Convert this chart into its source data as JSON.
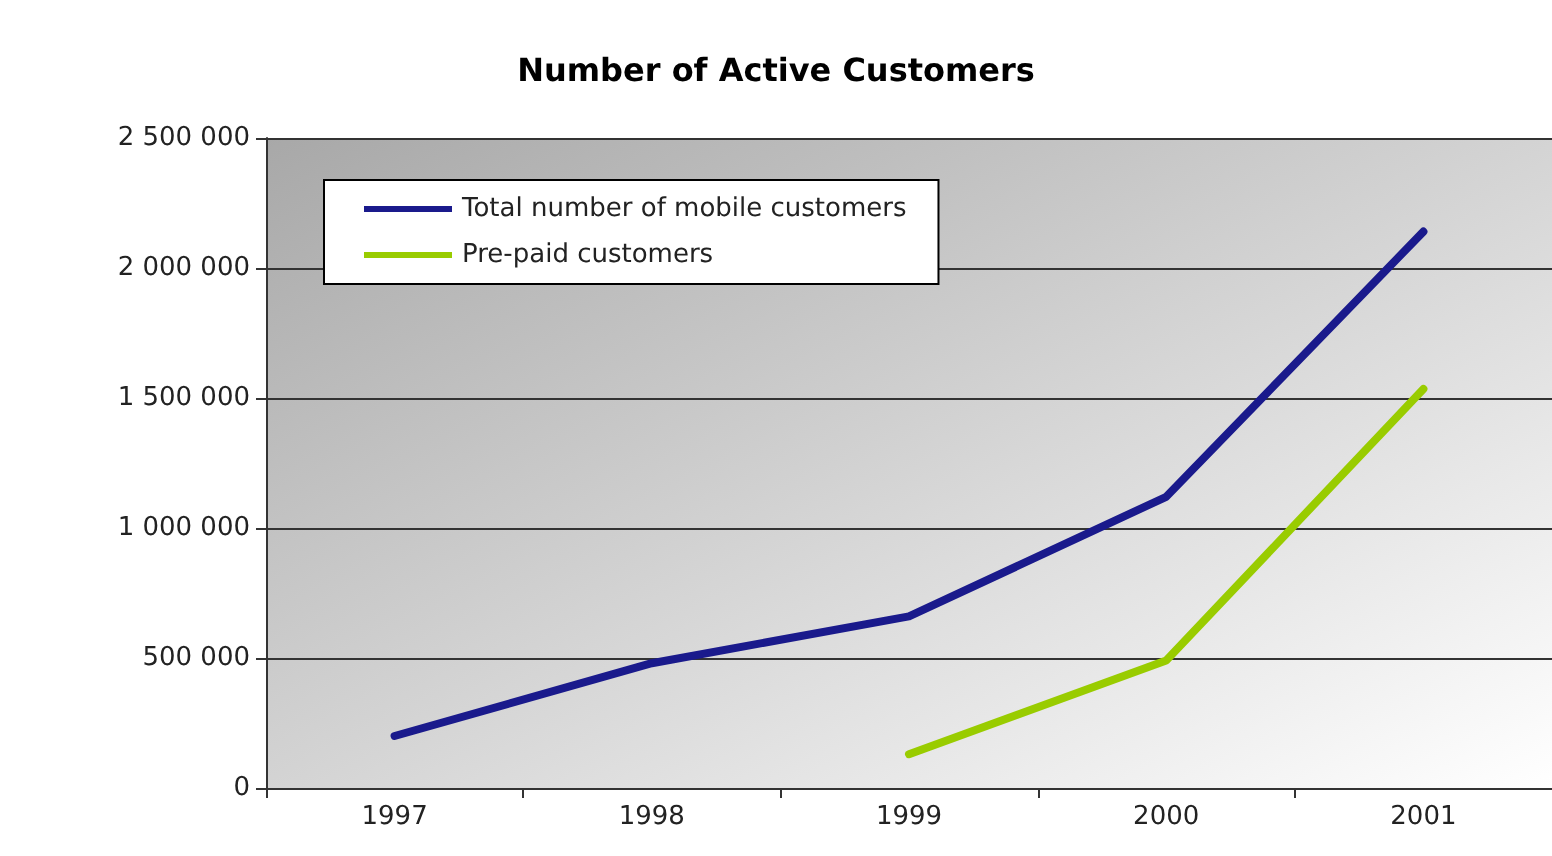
{
  "chart_data": {
    "type": "line",
    "title": "Number of Active Customers",
    "categories": [
      "1997",
      "1998",
      "1999",
      "2000",
      "2001"
    ],
    "series": [
      {
        "name": "Total number of mobile customers",
        "color": "#1a1a8c",
        "values": [
          200000,
          480000,
          660000,
          1120000,
          2140000
        ]
      },
      {
        "name": "Pre-paid customers",
        "color": "#99cc00",
        "values": [
          null,
          null,
          130000,
          490000,
          1535000
        ]
      }
    ],
    "ylim": [
      0,
      2500000
    ],
    "yticks": [
      0,
      500000,
      1000000,
      1500000,
      2000000,
      2500000
    ],
    "grid": "y",
    "legend": "top left",
    "marker": "none",
    "line_style": "solid"
  }
}
